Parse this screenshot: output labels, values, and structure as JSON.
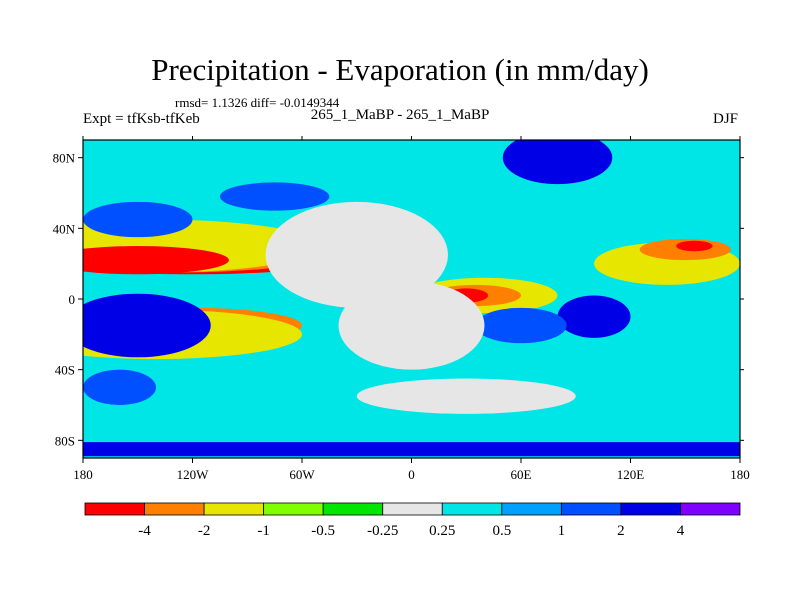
{
  "header": {
    "title": "Precipitation - Evaporation (in mm/day)",
    "stats": "rmsd= 1.1326 diff= -0.0149344",
    "left_label": "Expt = tfKsb-tfKeb",
    "center_label": "265_1_MaBP - 265_1_MaBP",
    "right_label": "DJF"
  },
  "chart_data": {
    "type": "heatmap",
    "projection": "cylindrical-equidistant",
    "xlim": [
      -180,
      180
    ],
    "ylim": [
      -90,
      90
    ],
    "x_ticks": [
      {
        "value": -180,
        "label": "180"
      },
      {
        "value": -120,
        "label": "120W"
      },
      {
        "value": -60,
        "label": "60W"
      },
      {
        "value": 0,
        "label": "0"
      },
      {
        "value": 60,
        "label": "60E"
      },
      {
        "value": 120,
        "label": "120E"
      },
      {
        "value": 180,
        "label": "180"
      }
    ],
    "y_ticks": [
      {
        "value": 80,
        "label": "80N"
      },
      {
        "value": 40,
        "label": "40N"
      },
      {
        "value": 0,
        "label": "0"
      },
      {
        "value": -40,
        "label": "40S"
      },
      {
        "value": -80,
        "label": "80S"
      }
    ],
    "colorbar": {
      "colors": [
        "#ff0000",
        "#ff8000",
        "#e6e600",
        "#80ff00",
        "#00e600",
        "#e6e6e6",
        "#00e6e6",
        "#00a0ff",
        "#0050ff",
        "#0000e6",
        "#8000ff"
      ],
      "boundaries": [
        "-4",
        "-2",
        "-1",
        "-0.5",
        "-0.25",
        "0.25",
        "0.5",
        "1",
        "2",
        "4"
      ]
    },
    "field": [
      {
        "lon": -120,
        "lat": 20,
        "rx": 70,
        "ry": 6,
        "level": 0
      },
      {
        "lon": -130,
        "lat": 25,
        "rx": 80,
        "ry": 10,
        "level": 1
      },
      {
        "lon": -140,
        "lat": 30,
        "rx": 90,
        "ry": 15,
        "level": 2
      },
      {
        "lon": -150,
        "lat": 22,
        "rx": 50,
        "ry": 8,
        "level": 0
      },
      {
        "lon": -120,
        "lat": -15,
        "rx": 60,
        "ry": 10,
        "level": 1
      },
      {
        "lon": -140,
        "lat": -20,
        "rx": 80,
        "ry": 14,
        "level": 2
      },
      {
        "lon": 40,
        "lat": 2,
        "rx": 40,
        "ry": 10,
        "level": 2
      },
      {
        "lon": 35,
        "lat": 2,
        "rx": 25,
        "ry": 6,
        "level": 1
      },
      {
        "lon": 30,
        "lat": 2,
        "rx": 12,
        "ry": 4,
        "level": 0
      },
      {
        "lon": 140,
        "lat": 20,
        "rx": 40,
        "ry": 12,
        "level": 2
      },
      {
        "lon": 150,
        "lat": 28,
        "rx": 25,
        "ry": 6,
        "level": 1
      },
      {
        "lon": 155,
        "lat": 30,
        "rx": 10,
        "ry": 3,
        "level": 0
      },
      {
        "lon": -150,
        "lat": -8,
        "rx": 30,
        "ry": 10,
        "level": 10
      },
      {
        "lon": -150,
        "lat": -15,
        "rx": 40,
        "ry": 18,
        "level": 9
      },
      {
        "lon": -150,
        "lat": 45,
        "rx": 30,
        "ry": 10,
        "level": 8
      },
      {
        "lon": -75,
        "lat": 58,
        "rx": 30,
        "ry": 8,
        "level": 8
      },
      {
        "lon": -160,
        "lat": -50,
        "rx": 20,
        "ry": 10,
        "level": 8
      },
      {
        "lon": 80,
        "lat": 80,
        "rx": 30,
        "ry": 15,
        "level": 9
      },
      {
        "lon": 100,
        "lat": -10,
        "rx": 20,
        "ry": 12,
        "level": 9
      },
      {
        "lon": 60,
        "lat": -15,
        "rx": 25,
        "ry": 10,
        "level": 8
      },
      {
        "lon": -30,
        "lat": 25,
        "rx": 50,
        "ry": 30,
        "level": 5
      },
      {
        "lon": 0,
        "lat": -15,
        "rx": 40,
        "ry": 25,
        "level": 5
      },
      {
        "lon": 30,
        "lat": -55,
        "rx": 60,
        "ry": 10,
        "level": 5
      },
      {
        "lon": -180,
        "lat": -85,
        "rx": 360,
        "ry": 4,
        "level": 9
      }
    ]
  }
}
